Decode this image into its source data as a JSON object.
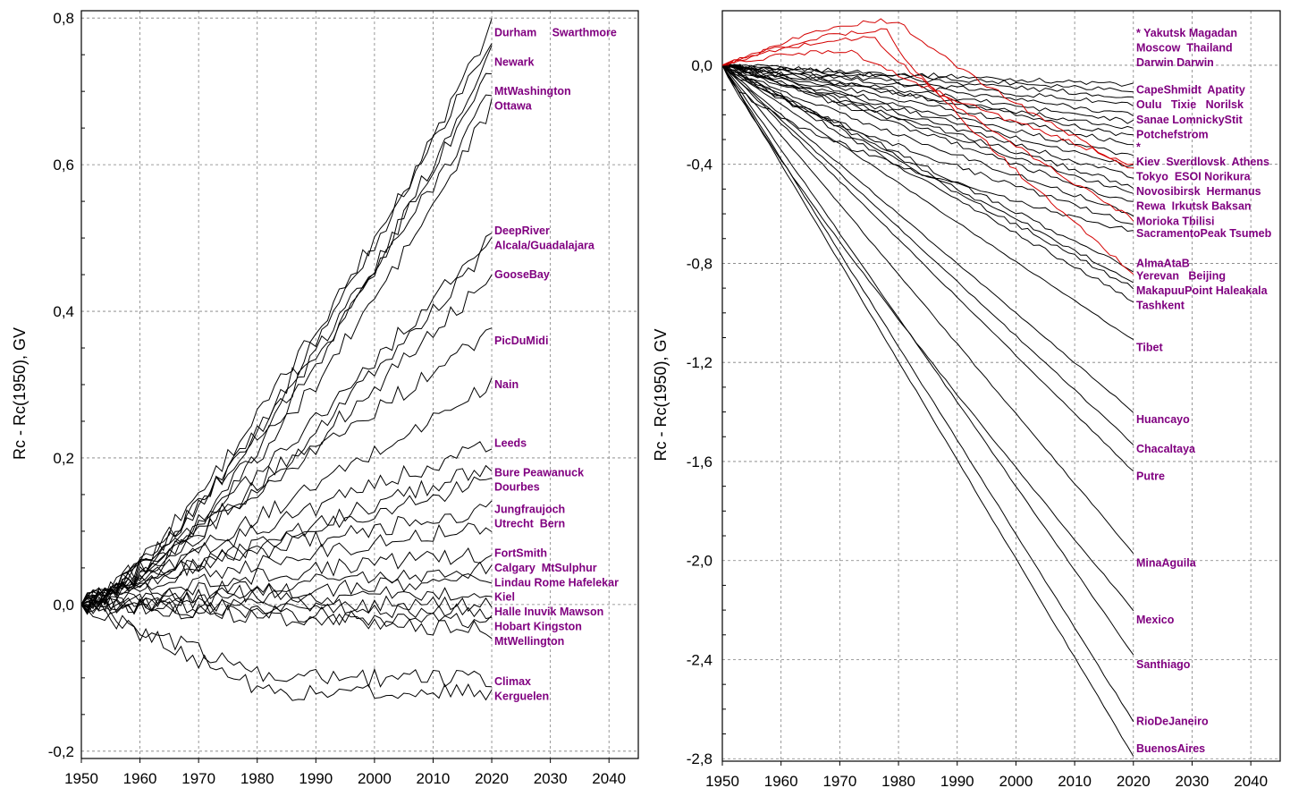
{
  "chart_data": [
    {
      "type": "line",
      "ylabel": "Rc - Rc(1950), GV",
      "xlabel": "",
      "xlim": [
        1950,
        2045
      ],
      "ylim": [
        -0.21,
        0.81
      ],
      "x_ticks": [
        "1950",
        "1960",
        "1970",
        "1980",
        "1990",
        "2000",
        "2010",
        "2020",
        "2030",
        "2040"
      ],
      "y_ticks": [
        "-0,2",
        "0,0",
        "0,2",
        "0,4",
        "0,6",
        "0,8"
      ],
      "grid": true,
      "legend": "station names at line ends (right side)",
      "line_color": "#000000",
      "label_color": "#800080",
      "labels": [
        {
          "text": "Durham     Swarthmore",
          "y": 0.78
        },
        {
          "text": "Newark",
          "y": 0.74
        },
        {
          "text": "MtWashington",
          "y": 0.7
        },
        {
          "text": "Ottawa",
          "y": 0.68
        },
        {
          "text": "DeepRiver",
          "y": 0.51
        },
        {
          "text": "Alcala/Guadalajara",
          "y": 0.49
        },
        {
          "text": "GooseBay",
          "y": 0.45
        },
        {
          "text": "PicDuMidi",
          "y": 0.36
        },
        {
          "text": "Nain",
          "y": 0.3
        },
        {
          "text": "Leeds",
          "y": 0.22
        },
        {
          "text": "Bure Peawanuck",
          "y": 0.18
        },
        {
          "text": "Dourbes",
          "y": 0.16
        },
        {
          "text": "Jungfraujoch",
          "y": 0.13
        },
        {
          "text": "Utrecht  Bern",
          "y": 0.11
        },
        {
          "text": "FortSmith",
          "y": 0.07
        },
        {
          "text": "Calgary  MtSulphur",
          "y": 0.05
        },
        {
          "text": "Lindau Rome Hafelekar",
          "y": 0.03
        },
        {
          "text": "Kiel",
          "y": 0.01
        },
        {
          "text": "Halle Inuvik Mawson",
          "y": -0.01
        },
        {
          "text": "Hobart Kingston",
          "y": -0.03
        },
        {
          "text": "MtWellington",
          "y": -0.05
        },
        {
          "text": "Climax",
          "y": -0.105
        },
        {
          "text": "Kerguelen",
          "y": -0.125
        }
      ],
      "series": [
        {
          "final": 0.79,
          "shape": 1.4,
          "color": "#000000"
        },
        {
          "final": 0.775,
          "shape": 1.3,
          "color": "#000000"
        },
        {
          "final": 0.76,
          "shape": 1.5,
          "color": "#000000"
        },
        {
          "final": 0.73,
          "shape": 1.35,
          "color": "#000000"
        },
        {
          "final": 0.7,
          "shape": 1.3,
          "color": "#000000"
        },
        {
          "final": 0.68,
          "shape": 1.45,
          "color": "#000000"
        },
        {
          "final": 0.5,
          "shape": 1.2,
          "color": "#000000"
        },
        {
          "final": 0.49,
          "shape": 1.3,
          "color": "#000000"
        },
        {
          "final": 0.45,
          "shape": 1.25,
          "color": "#000000"
        },
        {
          "final": 0.37,
          "shape": 1.0,
          "color": "#000000"
        },
        {
          "final": 0.3,
          "shape": 1.1,
          "color": "#000000"
        },
        {
          "final": 0.22,
          "shape": 0.9,
          "color": "#000000"
        },
        {
          "final": 0.19,
          "shape": 1.0,
          "color": "#000000"
        },
        {
          "final": 0.17,
          "shape": 0.9,
          "color": "#000000"
        },
        {
          "final": 0.13,
          "shape": 0.7,
          "color": "#000000"
        },
        {
          "final": 0.11,
          "shape": 0.8,
          "color": "#000000"
        },
        {
          "final": 0.07,
          "shape": 0.7,
          "color": "#000000"
        },
        {
          "final": 0.05,
          "shape": 0.8,
          "color": "#000000"
        },
        {
          "final": 0.035,
          "shape": 0.9,
          "color": "#000000"
        },
        {
          "final": 0.02,
          "shape": 1.0,
          "color": "#000000"
        },
        {
          "final": 0.0,
          "shape": 1.0,
          "color": "#000000"
        },
        {
          "final": -0.01,
          "shape": 1.0,
          "color": "#000000"
        },
        {
          "final": -0.025,
          "shape": 1.0,
          "color": "#000000"
        },
        {
          "final": -0.035,
          "shape": 1.0,
          "color": "#000000"
        },
        {
          "final": -0.1,
          "shape": 1.0,
          "color": "#000000"
        },
        {
          "final": -0.12,
          "shape": 1.0,
          "color": "#000000"
        }
      ]
    },
    {
      "type": "line",
      "ylabel": "Rc - Rc(1950), GV",
      "xlabel": "",
      "xlim": [
        1950,
        2045
      ],
      "ylim": [
        -2.81,
        0.22
      ],
      "x_ticks": [
        "1950",
        "1960",
        "1970",
        "1980",
        "1990",
        "2000",
        "2010",
        "2020",
        "2030",
        "2040"
      ],
      "y_ticks": [
        "0,0",
        "-0,4",
        "-0,8",
        "-1,2",
        "-1,6",
        "-2,0",
        "-2,4",
        "-2,8"
      ],
      "grid": true,
      "legend": "station names at line ends (right side)",
      "line_color": "#000000",
      "highlight_color": "#d40000",
      "label_color": "#800080",
      "labels": [
        {
          "text": "* Yakutsk Magadan",
          "y": 0.13
        },
        {
          "text": "Moscow  Thailand",
          "y": 0.07
        },
        {
          "text": "Darwin Darwin",
          "y": 0.01
        },
        {
          "text": "CapeShmidt  Apatity",
          "y": -0.1
        },
        {
          "text": "Oulu   Tixie   Norilsk",
          "y": -0.16
        },
        {
          "text": "Sanae LomnickyStit",
          "y": -0.22
        },
        {
          "text": "Potchefstrom",
          "y": -0.28
        },
        {
          "text": "*",
          "y": -0.33
        },
        {
          "text": "Kiev  Sverdlovsk  Athens",
          "y": -0.39
        },
        {
          "text": "Tokyo  ESOI Norikura",
          "y": -0.45
        },
        {
          "text": "Novosibirsk  Hermanus",
          "y": -0.51
        },
        {
          "text": "Rewa  Irkutsk Baksan",
          "y": -0.57
        },
        {
          "text": "Morioka Tbilisi",
          "y": -0.63
        },
        {
          "text": "SacramentoPeak Tsumeb",
          "y": -0.68
        },
        {
          "text": "AlmaAtaB",
          "y": -0.8
        },
        {
          "text": "Yerevan   Beijing",
          "y": -0.85
        },
        {
          "text": "MakapuuPoint Haleakala",
          "y": -0.91
        },
        {
          "text": "Tashkent",
          "y": -0.97
        },
        {
          "text": "Tibet",
          "y": -1.14
        },
        {
          "text": "Huancayo",
          "y": -1.43
        },
        {
          "text": "Chacaltaya",
          "y": -1.55
        },
        {
          "text": "Putre",
          "y": -1.66
        },
        {
          "text": "MinaAguila",
          "y": -2.01
        },
        {
          "text": "Mexico",
          "y": -2.24
        },
        {
          "text": "Santhiago",
          "y": -2.42
        },
        {
          "text": "RioDeJaneiro",
          "y": -2.65
        },
        {
          "text": "BuenosAires",
          "y": -2.76
        }
      ],
      "series": [
        {
          "final": -0.08,
          "shape": 1.0,
          "color": "#000000"
        },
        {
          "final": -0.1,
          "shape": 1.0,
          "color": "#000000"
        },
        {
          "final": -0.13,
          "shape": 1.1,
          "color": "#000000"
        },
        {
          "final": -0.16,
          "shape": 1.0,
          "color": "#000000"
        },
        {
          "final": -0.2,
          "shape": 1.1,
          "color": "#000000"
        },
        {
          "final": -0.23,
          "shape": 1.0,
          "color": "#000000"
        },
        {
          "final": -0.26,
          "shape": 1.0,
          "color": "#000000"
        },
        {
          "final": -0.29,
          "shape": 1.1,
          "color": "#000000"
        },
        {
          "final": -0.32,
          "shape": 1.0,
          "color": "#000000"
        },
        {
          "final": -0.37,
          "shape": 1.0,
          "color": "#000000"
        },
        {
          "final": -0.41,
          "shape": 1.0,
          "color": "#000000"
        },
        {
          "final": -0.45,
          "shape": 1.0,
          "color": "#000000"
        },
        {
          "final": -0.49,
          "shape": 1.0,
          "color": "#000000"
        },
        {
          "final": -0.52,
          "shape": 1.0,
          "color": "#000000"
        },
        {
          "final": -0.56,
          "shape": 1.0,
          "color": "#000000"
        },
        {
          "final": -0.6,
          "shape": 0.9,
          "color": "#000000"
        },
        {
          "final": -0.64,
          "shape": 0.8,
          "color": "#000000"
        },
        {
          "final": -0.67,
          "shape": 0.6,
          "color": "#000000"
        },
        {
          "final": -0.83,
          "shape": 1.0,
          "color": "#000000"
        },
        {
          "final": -0.87,
          "shape": 1.0,
          "color": "#000000"
        },
        {
          "final": -0.9,
          "shape": 1.0,
          "color": "#000000"
        },
        {
          "final": -0.95,
          "shape": 1.0,
          "color": "#000000"
        },
        {
          "final": -1.11,
          "shape": 1.0,
          "color": "#000000"
        },
        {
          "final": -1.4,
          "shape": 1.0,
          "color": "#000000"
        },
        {
          "final": -1.53,
          "shape": 1.0,
          "color": "#000000"
        },
        {
          "final": -1.64,
          "shape": 1.0,
          "color": "#000000"
        },
        {
          "final": -1.97,
          "shape": 1.0,
          "color": "#000000"
        },
        {
          "final": -2.2,
          "shape": 0.9,
          "color": "#000000"
        },
        {
          "final": -2.38,
          "shape": 1.0,
          "color": "#000000"
        },
        {
          "final": -2.65,
          "shape": 1.0,
          "color": "#000000"
        },
        {
          "final": -2.79,
          "shape": 1.0,
          "color": "#000000"
        }
      ],
      "red_series": [
        {
          "peak_year": 1980,
          "peak": 0.18,
          "final": -0.42
        },
        {
          "peak_year": 1978,
          "peak": 0.14,
          "final": -0.84
        },
        {
          "peak_year": 1976,
          "peak": 0.11,
          "final": -0.62
        },
        {
          "peak_year": 1972,
          "peak": 0.06,
          "final": -0.4
        }
      ]
    }
  ]
}
